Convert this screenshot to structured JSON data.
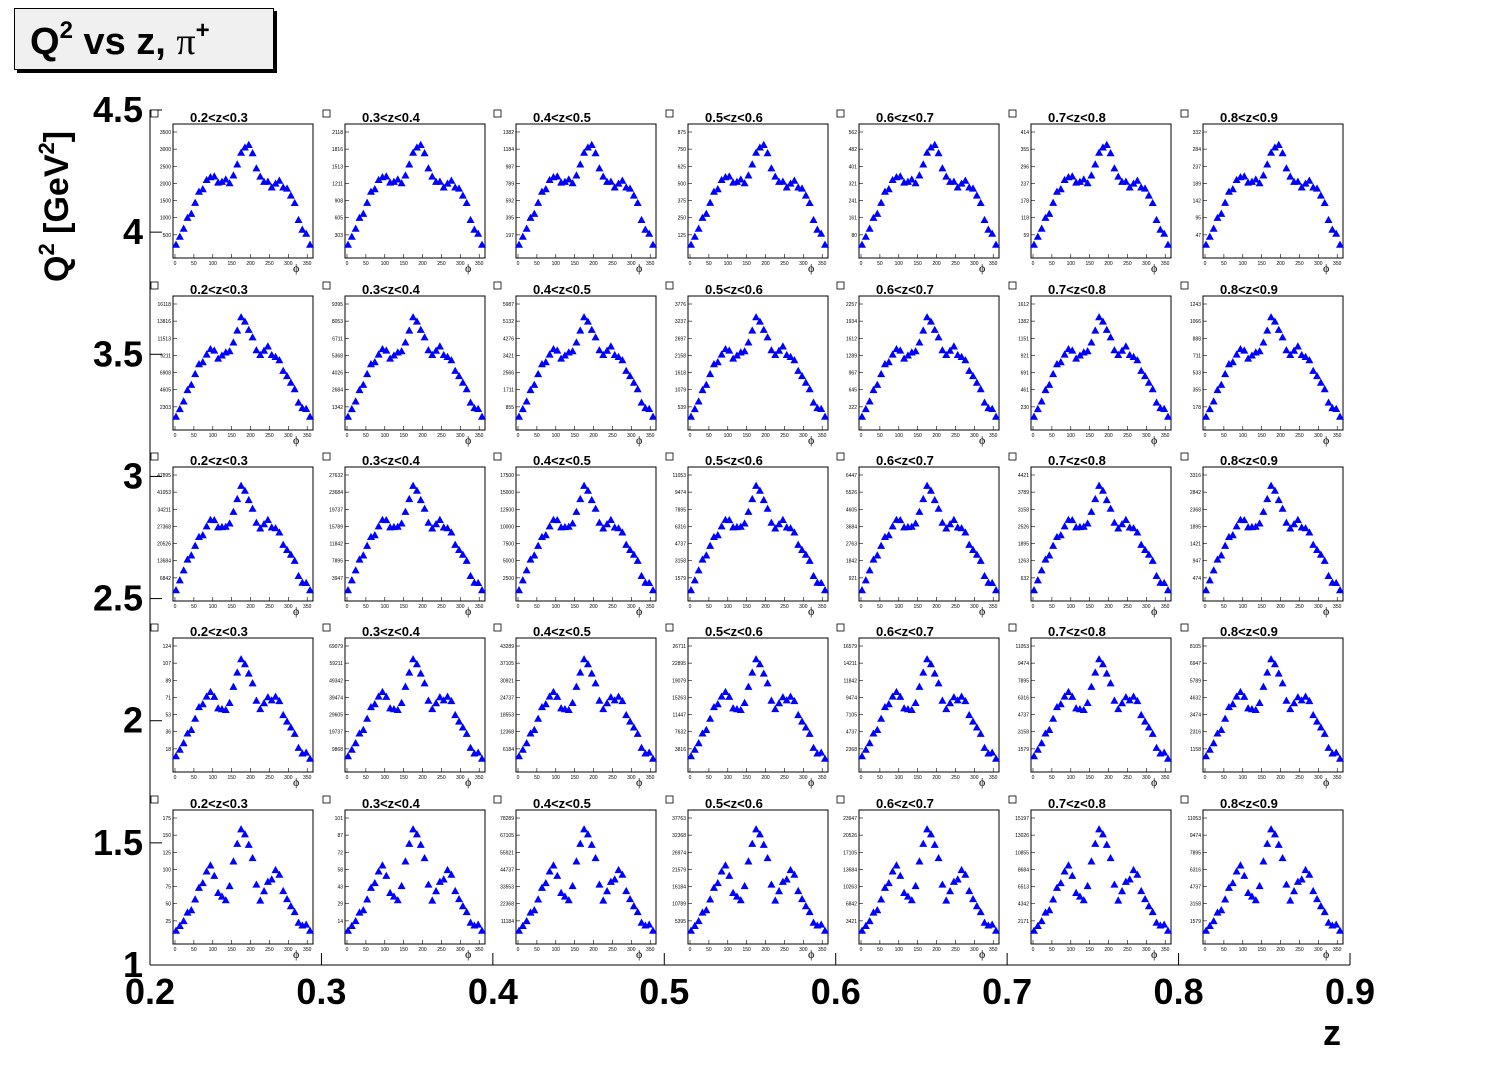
{
  "title": {
    "main": "Q",
    "sup": "2",
    "rest": " vs z, ",
    "pi": "π",
    "pi_sup": "+"
  },
  "outer_axes": {
    "xlabel": "z",
    "ylabel_main": "Q",
    "ylabel_sup": "2",
    "ylabel_rest": " [GeV",
    "ylabel_unit_sup": "2",
    "ylabel_close": "]",
    "xticks": [
      "0.2",
      "0.3",
      "0.4",
      "0.5",
      "0.6",
      "0.7",
      "0.8",
      "0.9"
    ],
    "yticks": [
      "4.5",
      "4",
      "3.5",
      "3",
      "2.5",
      "2",
      "1.5",
      "1"
    ]
  },
  "panel_labels": [
    "0.2<z<0.3",
    "0.3<z<0.4",
    "0.4<z<0.5",
    "0.5<z<0.6",
    "0.6<z<0.7",
    "0.7<z<0.8",
    "0.8<z<0.9"
  ],
  "inner_xlabel": "ϕ",
  "inner_xticks": [
    "0",
    "50",
    "100",
    "150",
    "200",
    "250",
    "300",
    "350"
  ],
  "colors": {
    "marker": "#0000ff",
    "frame": "#000000",
    "title_bg": "#f0f0f0"
  },
  "chart_data": {
    "type": "scatter",
    "description_of_layout": "5 rows (Q2 bins, top to bottom 4.5-1) x 7 columns (z bins) of phi distributions",
    "x_range": [
      0,
      360
    ],
    "marker": "triangle",
    "rows": [
      {
        "q2_bin": "row1",
        "ymax": [
          3800,
          2300,
          1500,
          950,
          610,
          450,
          360
        ]
      },
      {
        "q2_bin": "row2",
        "ymax": [
          17500,
          10200,
          6500,
          4100,
          2450,
          1750,
          1350
        ]
      },
      {
        "q2_bin": "row3",
        "ymax": [
          52000,
          30000,
          19000,
          12000,
          7000,
          4800,
          3600
        ]
      },
      {
        "q2_bin": "row4",
        "ymax": [
          135,
          75000,
          47000,
          29000,
          18000,
          12000,
          8800
        ]
      },
      {
        "q2_bin": "row5",
        "ymax": [
          190,
          110,
          85000,
          41000,
          26000,
          16500,
          12000
        ]
      }
    ],
    "shapes": {
      "row1": [
        0.1,
        0.2,
        0.35,
        0.5,
        0.62,
        0.6,
        0.58,
        0.6,
        0.75,
        0.92,
        0.75,
        0.58,
        0.55,
        0.58,
        0.55,
        0.4,
        0.2,
        0.1
      ],
      "row2": [
        0.1,
        0.2,
        0.38,
        0.52,
        0.62,
        0.56,
        0.58,
        0.7,
        0.9,
        0.72,
        0.58,
        0.62,
        0.55,
        0.45,
        0.3,
        0.15,
        0.1
      ],
      "row3": [
        0.08,
        0.22,
        0.38,
        0.5,
        0.62,
        0.58,
        0.55,
        0.72,
        0.92,
        0.72,
        0.56,
        0.6,
        0.55,
        0.42,
        0.3,
        0.12,
        0.08
      ],
      "row4": [
        0.12,
        0.2,
        0.35,
        0.52,
        0.62,
        0.5,
        0.45,
        0.7,
        0.9,
        0.7,
        0.48,
        0.55,
        0.58,
        0.42,
        0.28,
        0.12,
        0.1
      ],
      "row5": [
        0.1,
        0.15,
        0.28,
        0.45,
        0.62,
        0.4,
        0.3,
        0.7,
        0.92,
        0.7,
        0.32,
        0.45,
        0.58,
        0.38,
        0.22,
        0.12,
        0.1
      ]
    }
  }
}
